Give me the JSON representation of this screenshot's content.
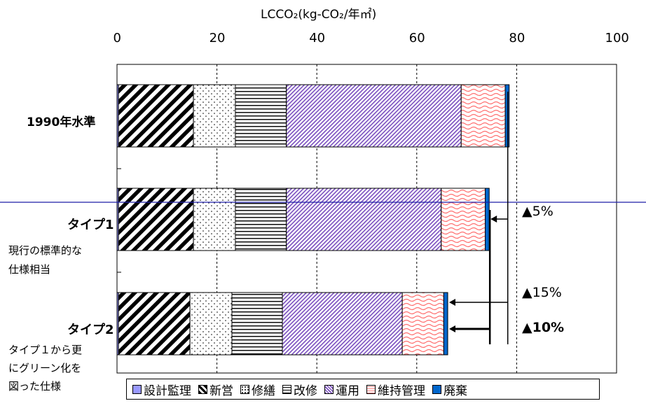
{
  "chart_data": {
    "type": "bar",
    "orientation": "horizontal",
    "stacked": true,
    "title": "LCCO₂(kg-CO₂/年㎡)",
    "xlim": [
      0,
      100
    ],
    "x_ticks": [
      "0",
      "20",
      "40",
      "60",
      "80",
      "100"
    ],
    "grid": "vertical dashed",
    "categories": [
      "1990年水準",
      "タイプ1",
      "タイプ2"
    ],
    "category_labels": [
      {
        "main": "1990年水準",
        "sub": []
      },
      {
        "main": "タイプ1",
        "sub": [
          "現行の標準的な",
          "仕様相当"
        ]
      },
      {
        "main": "タイプ2",
        "sub": [
          "タイプ１から更",
          "にグリーン化を",
          "図った仕様"
        ]
      }
    ],
    "series": [
      {
        "name": "設計監理",
        "color": "#9999ff",
        "values": [
          0.3,
          0.3,
          0.3
        ]
      },
      {
        "name": "新営",
        "color": "#000000",
        "values": [
          15,
          15,
          14.3
        ]
      },
      {
        "name": "修繕",
        "color": "#ffffff",
        "values": [
          8.4,
          8.4,
          8.4
        ]
      },
      {
        "name": "改修",
        "color": "#ffffff",
        "values": [
          10.2,
          10.2,
          10.1
        ]
      },
      {
        "name": "運用",
        "color": "#9966cc",
        "values": [
          35,
          31,
          24
        ]
      },
      {
        "name": "維持管理",
        "color": "#ff8080",
        "values": [
          8.8,
          8.8,
          8.3
        ]
      },
      {
        "name": "廃棄",
        "color": "#0066cc",
        "values": [
          0.8,
          0.8,
          0.8
        ]
      }
    ],
    "annotations": [
      {
        "text": "▲5%",
        "bold": false
      },
      {
        "text": "▲15%",
        "bold": false
      },
      {
        "text": "▲10%",
        "bold": true
      }
    ]
  },
  "legend": [
    {
      "label": "設計監理",
      "key": "design"
    },
    {
      "label": "新営",
      "key": "new"
    },
    {
      "label": "修繕",
      "key": "repair"
    },
    {
      "label": "改修",
      "key": "renov"
    },
    {
      "label": "運用",
      "key": "oper"
    },
    {
      "label": "維持管理",
      "key": "maint"
    },
    {
      "label": "廃棄",
      "key": "waste"
    }
  ]
}
